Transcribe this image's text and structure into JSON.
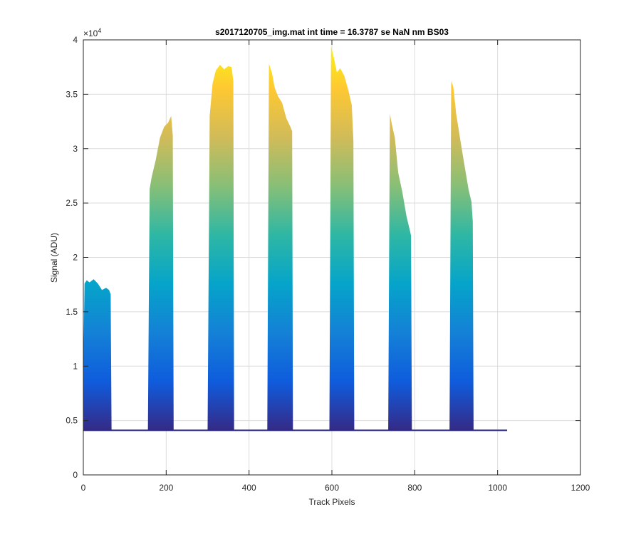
{
  "chart_data": {
    "type": "area",
    "title": "s2017120705_img.mat int time = 16.3787 se  NaN nm BS03",
    "xlabel": "Track Pixels",
    "ylabel": "Signal (ADU)",
    "xlim": [
      0,
      1200
    ],
    "ylim": [
      0,
      40000
    ],
    "x_ticks": [
      0,
      200,
      400,
      600,
      800,
      1000,
      1200
    ],
    "x_tick_labels": [
      "0",
      "200",
      "400",
      "600",
      "800",
      "1000",
      "1200"
    ],
    "y_ticks": [
      0,
      5000,
      10000,
      15000,
      20000,
      25000,
      30000,
      35000,
      40000
    ],
    "y_tick_labels": [
      "0",
      "0.5",
      "1",
      "1.5",
      "2",
      "2.5",
      "3",
      "3.5",
      "4"
    ],
    "y_exponent_label": "×10",
    "y_exponent_power": "4",
    "grid": true,
    "colormap": [
      "#352a87",
      "#0f5cdd",
      "#1481d6",
      "#06a4ca",
      "#2eb7a4",
      "#87bf77",
      "#d1bb59",
      "#fec832",
      "#f9fb0e"
    ],
    "baseline": 4100,
    "x_extent": [
      0,
      1023
    ],
    "peaks": [
      {
        "x": [
          0,
          3,
          8,
          15,
          25,
          35,
          45,
          55,
          62,
          66,
          68
        ],
        "y": [
          10000,
          17600,
          17900,
          17700,
          18000,
          17600,
          17000,
          17200,
          17000,
          16600,
          4300
        ]
      },
      {
        "x": [
          156,
          160,
          165,
          175,
          185,
          195,
          205,
          212,
          216,
          218
        ],
        "y": [
          4300,
          26300,
          27400,
          29000,
          31000,
          32000,
          32400,
          33000,
          31200,
          4300
        ]
      },
      {
        "x": [
          300,
          305,
          312,
          320,
          330,
          340,
          350,
          358,
          362,
          364
        ],
        "y": [
          4300,
          33000,
          36000,
          37200,
          37700,
          37300,
          37600,
          37500,
          36200,
          4300
        ]
      },
      {
        "x": [
          444,
          448,
          455,
          462,
          470,
          480,
          490,
          500,
          504,
          506
        ],
        "y": [
          4300,
          37800,
          37000,
          35600,
          34800,
          34200,
          32800,
          32000,
          31600,
          4300
        ]
      },
      {
        "x": [
          594,
          598,
          604,
          612,
          620,
          630,
          640,
          648,
          652,
          654
        ],
        "y": [
          4300,
          39400,
          38500,
          37000,
          37400,
          36700,
          35300,
          34000,
          30700,
          4300
        ]
      },
      {
        "x": [
          736,
          740,
          745,
          752,
          760,
          770,
          780,
          788,
          791,
          793
        ],
        "y": [
          4300,
          33200,
          32200,
          31000,
          27800,
          26000,
          23800,
          22500,
          22000,
          4300
        ]
      },
      {
        "x": [
          884,
          888,
          893,
          900,
          910,
          920,
          930,
          937,
          940,
          942
        ],
        "y": [
          4300,
          36200,
          35700,
          33200,
          30800,
          28500,
          26200,
          25100,
          23300,
          4300
        ]
      }
    ]
  }
}
